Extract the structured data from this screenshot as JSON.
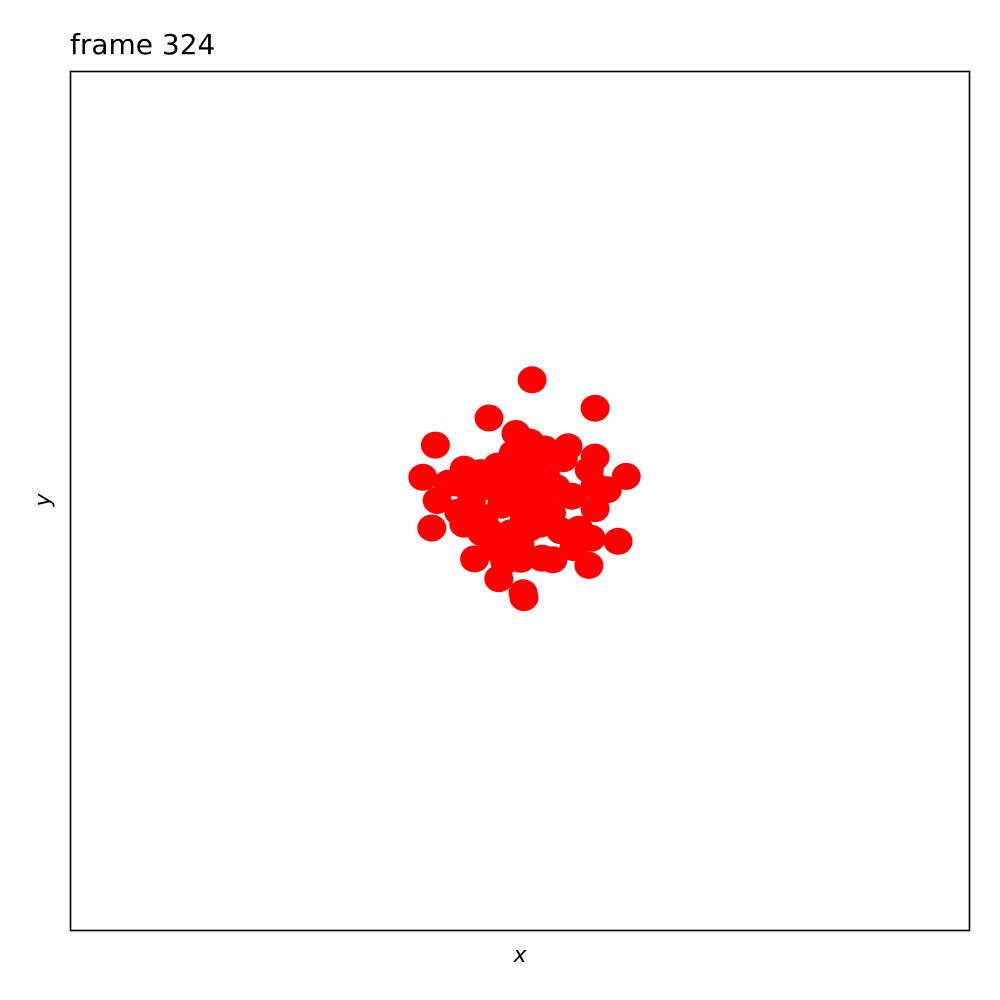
{
  "chart_data": {
    "type": "scatter",
    "title": "frame 324",
    "xlabel": "x",
    "ylabel": "y",
    "xlim": [
      -1,
      1
    ],
    "ylim": [
      -1,
      1
    ],
    "ticks_shown": false,
    "grid": false,
    "legend": "none",
    "marker_color": "#ff0000",
    "points": [
      [
        0.027,
        0.281
      ],
      [
        0.167,
        0.215
      ],
      [
        0.236,
        0.056
      ],
      [
        -0.069,
        0.192
      ],
      [
        -0.188,
        0.129
      ],
      [
        -0.216,
        0.054
      ],
      [
        -0.184,
        0.0
      ],
      [
        -0.196,
        -0.064
      ],
      [
        -0.124,
        0.073
      ],
      [
        -0.088,
        0.065
      ],
      [
        -0.009,
        0.156
      ],
      [
        0.022,
        0.136
      ],
      [
        0.107,
        0.125
      ],
      [
        0.167,
        0.101
      ],
      [
        0.096,
        0.097
      ],
      [
        0.154,
        0.071
      ],
      [
        0.167,
        0.034
      ],
      [
        0.194,
        0.025
      ],
      [
        0.167,
        -0.019
      ],
      [
        0.131,
        -0.067
      ],
      [
        0.158,
        -0.088
      ],
      [
        0.218,
        -0.095
      ],
      [
        0.153,
        -0.151
      ],
      [
        0.049,
        -0.134
      ],
      [
        0.073,
        -0.138
      ],
      [
        0.002,
        -0.137
      ],
      [
        -0.034,
        -0.142
      ],
      [
        -0.101,
        -0.136
      ],
      [
        -0.047,
        -0.182
      ],
      [
        0.007,
        -0.215
      ],
      [
        0.009,
        -0.226
      ],
      [
        -0.136,
        -0.027
      ],
      [
        -0.125,
        -0.055
      ],
      [
        -0.137,
        0.04
      ],
      [
        -0.108,
        -0.002
      ],
      [
        -0.081,
        -0.04
      ],
      [
        -0.061,
        0.03
      ],
      [
        -0.041,
        -0.011
      ],
      [
        -0.032,
        0.058
      ],
      [
        -0.012,
        0.1
      ],
      [
        0.0,
        0.122
      ],
      [
        0.01,
        0.06
      ],
      [
        0.02,
        0.02
      ],
      [
        0.03,
        -0.02
      ],
      [
        0.05,
        0.01
      ],
      [
        0.06,
        0.05
      ],
      [
        0.045,
        -0.055
      ],
      [
        0.07,
        -0.03
      ],
      [
        0.08,
        0.03
      ],
      [
        -0.02,
        -0.075
      ],
      [
        0.0,
        -0.1
      ],
      [
        -0.045,
        -0.09
      ],
      [
        -0.07,
        -0.07
      ],
      [
        -0.01,
        0.03
      ],
      [
        0.01,
        -0.04
      ],
      [
        -0.03,
        0.0
      ],
      [
        -0.05,
        0.08
      ],
      [
        0.035,
        0.085
      ],
      [
        0.02,
        -0.065
      ],
      [
        -0.015,
        0.11
      ],
      [
        0.115,
        0.01
      ],
      [
        0.09,
        -0.07
      ],
      [
        -0.095,
        0.035
      ],
      [
        -0.06,
        -0.11
      ],
      [
        0.055,
        0.12
      ],
      [
        -0.16,
        0.04
      ],
      [
        0.12,
        -0.11
      ],
      [
        -0.085,
        -0.075
      ]
    ]
  }
}
